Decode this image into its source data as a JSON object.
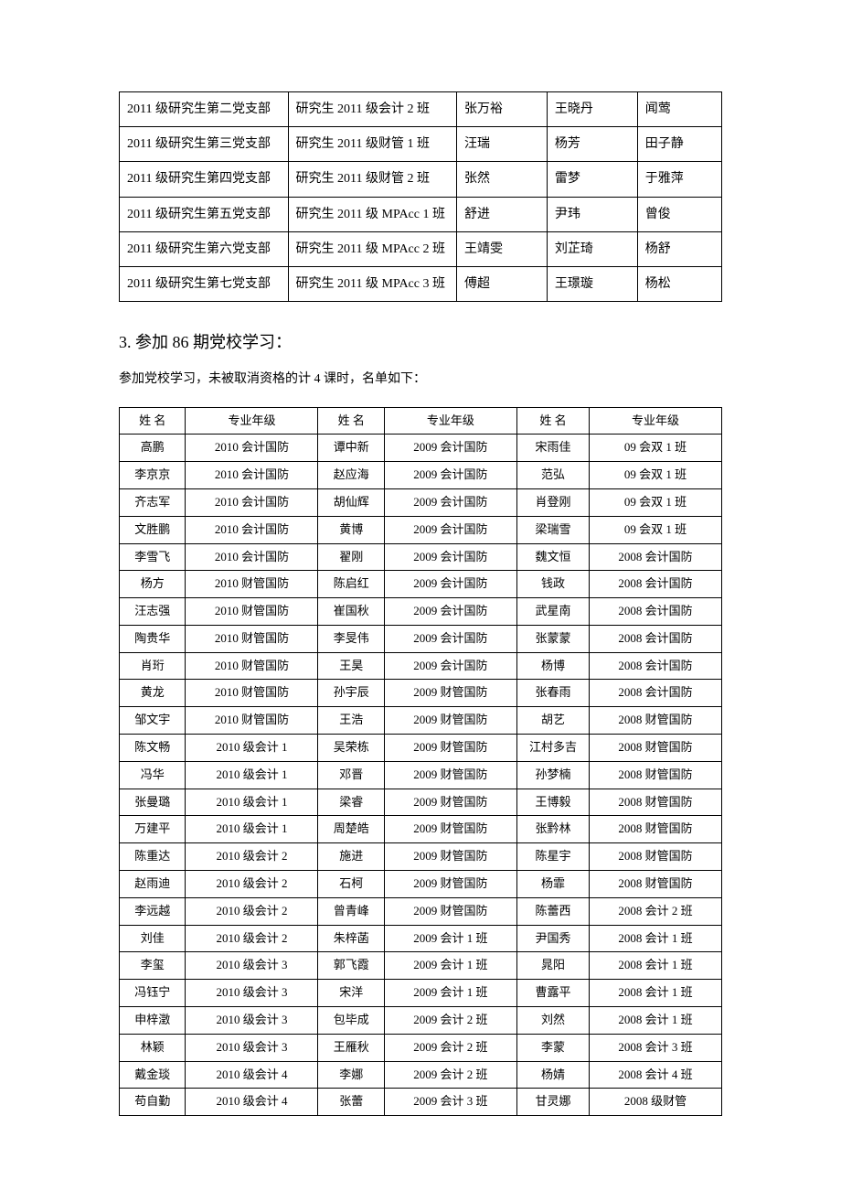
{
  "table1": {
    "rows": [
      {
        "c1": "2011 级研究生第二党支部",
        "c2": "研究生 2011 级会计 2 班",
        "c3": "张万裕",
        "c4": "王晓丹",
        "c5": "闻莺"
      },
      {
        "c1": "2011 级研究生第三党支部",
        "c2": "研究生 2011 级财管 1 班",
        "c3": "汪瑞",
        "c4": "杨芳",
        "c5": "田子静"
      },
      {
        "c1": "2011 级研究生第四党支部",
        "c2": "研究生 2011 级财管 2 班",
        "c3": "张然",
        "c4": "雷梦",
        "c5": "于雅萍"
      },
      {
        "c1": "2011 级研究生第五党支部",
        "c2": "研究生 2011 级 MPAcc 1 班",
        "c3": "舒进",
        "c4": "尹玮",
        "c5": "曾俊"
      },
      {
        "c1": "2011 级研究生第六党支部",
        "c2": "研究生 2011 级 MPAcc 2 班",
        "c3": "王靖雯",
        "c4": "刘芷琦",
        "c5": "杨舒"
      },
      {
        "c1": "2011 级研究生第七党支部",
        "c2": "研究生 2011 级 MPAcc 3 班",
        "c3": "傅超",
        "c4": "王璟璇",
        "c5": "杨松"
      }
    ]
  },
  "section": {
    "heading_num": "3.",
    "heading_text": "参加 86 期党校学习：",
    "desc": "参加党校学习，未被取消资格的计 4 课时，名单如下："
  },
  "table2": {
    "header": {
      "h1": "姓 名",
      "h2": "专业年级",
      "h3": "姓 名",
      "h4": "专业年级",
      "h5": "姓 名",
      "h6": "专业年级"
    },
    "rows": [
      {
        "c1": "高鹏",
        "c2": "2010 会计国防",
        "c3": "谭中新",
        "c4": "2009 会计国防",
        "c5": "宋雨佳",
        "c6": "09 会双 1 班"
      },
      {
        "c1": "李京京",
        "c2": "2010 会计国防",
        "c3": "赵应海",
        "c4": "2009 会计国防",
        "c5": "范弘",
        "c6": "09 会双 1 班"
      },
      {
        "c1": "齐志军",
        "c2": "2010 会计国防",
        "c3": "胡仙辉",
        "c4": "2009 会计国防",
        "c5": "肖登刚",
        "c6": "09 会双 1 班"
      },
      {
        "c1": "文胜鹏",
        "c2": "2010 会计国防",
        "c3": "黄博",
        "c4": "2009 会计国防",
        "c5": "梁瑞雪",
        "c6": "09 会双 1 班"
      },
      {
        "c1": "李雪飞",
        "c2": "2010 会计国防",
        "c3": "翟刚",
        "c4": "2009 会计国防",
        "c5": "魏文恒",
        "c6": "2008 会计国防"
      },
      {
        "c1": "杨方",
        "c2": "2010 财管国防",
        "c3": "陈启红",
        "c4": "2009 会计国防",
        "c5": "钱政",
        "c6": "2008 会计国防"
      },
      {
        "c1": "汪志强",
        "c2": "2010 财管国防",
        "c3": "崔国秋",
        "c4": "2009 会计国防",
        "c5": "武星南",
        "c6": "2008 会计国防"
      },
      {
        "c1": "陶贵华",
        "c2": "2010 财管国防",
        "c3": "李旻伟",
        "c4": "2009 会计国防",
        "c5": "张蒙蒙",
        "c6": "2008 会计国防"
      },
      {
        "c1": "肖珩",
        "c2": "2010 财管国防",
        "c3": "王昊",
        "c4": "2009 会计国防",
        "c5": "杨博",
        "c6": "2008 会计国防"
      },
      {
        "c1": "黄龙",
        "c2": "2010 财管国防",
        "c3": "孙宇辰",
        "c4": "2009 财管国防",
        "c5": "张春雨",
        "c6": "2008 会计国防"
      },
      {
        "c1": "邹文宇",
        "c2": "2010 财管国防",
        "c3": "王浩",
        "c4": "2009 财管国防",
        "c5": "胡艺",
        "c6": "2008 财管国防"
      },
      {
        "c1": "陈文畅",
        "c2": "2010 级会计 1",
        "c3": "吴荣栋",
        "c4": "2009 财管国防",
        "c5": "江村多吉",
        "c6": "2008 财管国防"
      },
      {
        "c1": "冯华",
        "c2": "2010 级会计 1",
        "c3": "邓晋",
        "c4": "2009 财管国防",
        "c5": "孙梦楠",
        "c6": "2008 财管国防"
      },
      {
        "c1": "张曼璐",
        "c2": "2010 级会计 1",
        "c3": "梁睿",
        "c4": "2009 财管国防",
        "c5": "王博毅",
        "c6": "2008 财管国防"
      },
      {
        "c1": "万建平",
        "c2": "2010 级会计 1",
        "c3": "周楚皓",
        "c4": "2009 财管国防",
        "c5": "张黔林",
        "c6": "2008 财管国防"
      },
      {
        "c1": "陈重达",
        "c2": "2010 级会计 2",
        "c3": "施进",
        "c4": "2009 财管国防",
        "c5": "陈星宇",
        "c6": "2008 财管国防"
      },
      {
        "c1": "赵雨迪",
        "c2": "2010 级会计 2",
        "c3": "石柯",
        "c4": "2009 财管国防",
        "c5": "杨霏",
        "c6": "2008 财管国防"
      },
      {
        "c1": "李远越",
        "c2": "2010 级会计 2",
        "c3": "曾青峰",
        "c4": "2009 财管国防",
        "c5": "陈蕾西",
        "c6": "2008 会计 2 班"
      },
      {
        "c1": "刘佳",
        "c2": "2010 级会计 2",
        "c3": "朱梓菡",
        "c4": "2009 会计 1 班",
        "c5": "尹国秀",
        "c6": "2008 会计 1 班"
      },
      {
        "c1": "李玺",
        "c2": "2010 级会计 3",
        "c3": "郭飞霞",
        "c4": "2009 会计 1 班",
        "c5": "晁阳",
        "c6": "2008 会计 1 班"
      },
      {
        "c1": "冯钰宁",
        "c2": "2010 级会计 3",
        "c3": "宋洋",
        "c4": "2009 会计 1 班",
        "c5": "曹露平",
        "c6": "2008 会计 1 班"
      },
      {
        "c1": "申梓澂",
        "c2": "2010 级会计 3",
        "c3": "包毕成",
        "c4": "2009 会计 2 班",
        "c5": "刘然",
        "c6": "2008 会计 1 班"
      },
      {
        "c1": "林颖",
        "c2": "2010 级会计 3",
        "c3": "王雁秋",
        "c4": "2009 会计 2 班",
        "c5": "李蒙",
        "c6": "2008 会计 3 班"
      },
      {
        "c1": "戴金琰",
        "c2": "2010 级会计 4",
        "c3": "李娜",
        "c4": "2009 会计 2 班",
        "c5": "杨婧",
        "c6": "2008 会计 4 班"
      },
      {
        "c1": "苟自勤",
        "c2": "2010 级会计 4",
        "c3": "张蕾",
        "c4": "2009 会计 3 班",
        "c5": "甘灵娜",
        "c6": "2008 级财管"
      }
    ]
  }
}
